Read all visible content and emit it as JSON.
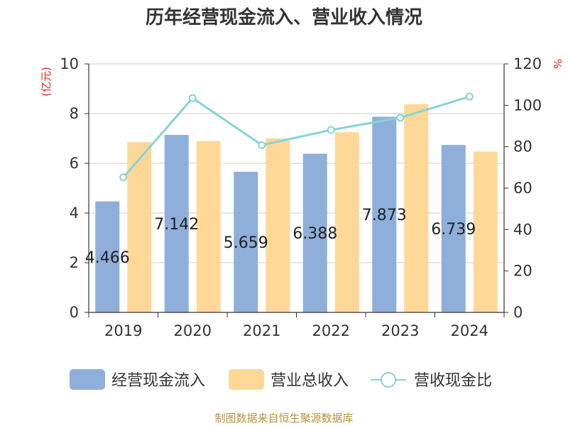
{
  "chart_data": {
    "type": "bar",
    "title": "历年经营现金流入、营业收入情况",
    "categories": [
      "2019",
      "2020",
      "2021",
      "2022",
      "2023",
      "2024"
    ],
    "series": [
      {
        "name": "经营现金流入",
        "kind": "bar",
        "axis": "left",
        "color": "#8fafdb",
        "values": [
          4.466,
          7.142,
          5.659,
          6.388,
          7.873,
          6.739
        ],
        "labels": [
          "4.466",
          "7.142",
          "5.659",
          "6.388",
          "7.873",
          "6.739"
        ]
      },
      {
        "name": "营业总收入",
        "kind": "bar",
        "axis": "left",
        "color": "#ffd898",
        "values": [
          6.85,
          6.9,
          7.0,
          7.25,
          8.38,
          6.47
        ]
      },
      {
        "name": "营收现金比",
        "kind": "line",
        "axis": "right",
        "color": "#86d3d6",
        "values": [
          65.2,
          103.5,
          80.8,
          88.1,
          94.0,
          104.2
        ]
      }
    ],
    "y_left": {
      "label": "(亿元)",
      "min": 0,
      "max": 10,
      "ticks": [
        "0",
        "2",
        "4",
        "6",
        "8",
        "10"
      ]
    },
    "y_right": {
      "label": "%",
      "min": 0,
      "max": 120,
      "ticks": [
        "0",
        "20",
        "40",
        "60",
        "80",
        "100",
        "120"
      ]
    },
    "grid": true,
    "legend_position": "bottom"
  },
  "source": "制图数据来自恒生聚源数据库"
}
